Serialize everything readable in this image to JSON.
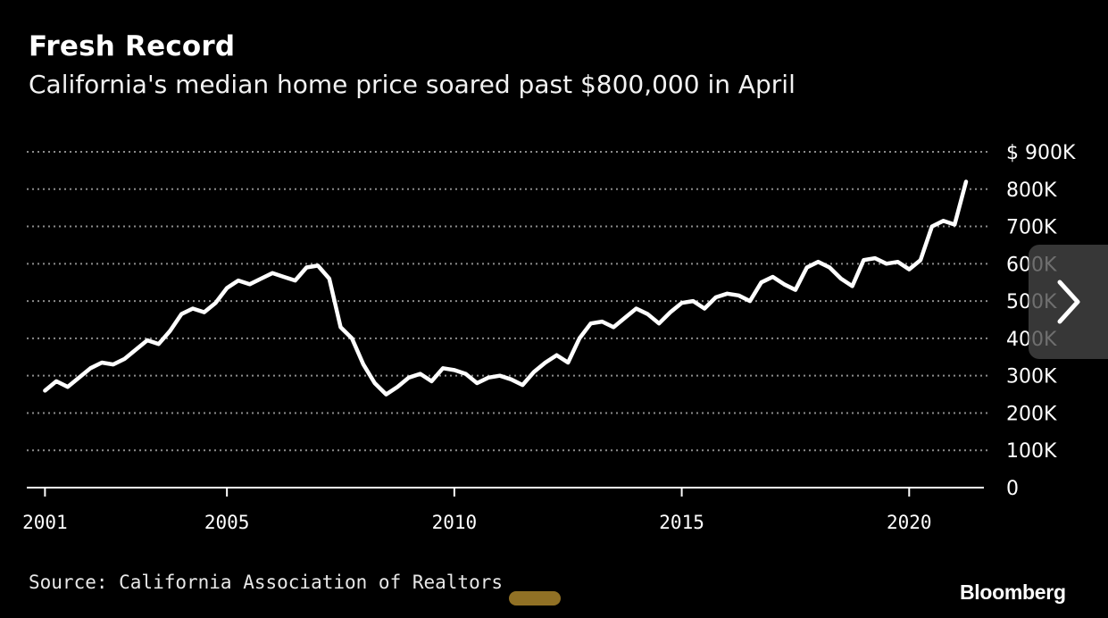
{
  "title": "Fresh Record",
  "subtitle": "California's median home price soared past $800,000 in April",
  "source": "Source: California Association of Realtors",
  "brand": "Bloomberg",
  "colors": {
    "background": "#000000",
    "line": "#ffffff",
    "grid": "#8c8c8c"
  },
  "navigation": {
    "next_icon": "chevron-right-icon"
  },
  "chart_data": {
    "type": "line",
    "xlabel": "",
    "ylabel": "",
    "xlim": [
      2000.6,
      2021.8
    ],
    "ylim": [
      0,
      900000
    ],
    "grid": true,
    "y_axis_position": "right",
    "x_ticks": [
      2001,
      2005,
      2010,
      2015,
      2020
    ],
    "x_tick_labels": [
      "2001",
      "2005",
      "2010",
      "2015",
      "2020"
    ],
    "y_ticks": [
      0,
      100000,
      200000,
      300000,
      400000,
      500000,
      600000,
      700000,
      800000,
      900000
    ],
    "y_tick_labels": [
      "0",
      "100K",
      "200K",
      "300K",
      "400K",
      "500K",
      "600K",
      "700K",
      "800K",
      "$ 900K"
    ],
    "series": [
      {
        "color": "#ffffff",
        "x": [
          2001.0,
          2001.25,
          2001.5,
          2001.75,
          2002.0,
          2002.25,
          2002.5,
          2002.75,
          2003.0,
          2003.25,
          2003.5,
          2003.75,
          2004.0,
          2004.25,
          2004.5,
          2004.75,
          2005.0,
          2005.25,
          2005.5,
          2005.75,
          2006.0,
          2006.25,
          2006.5,
          2006.75,
          2007.0,
          2007.25,
          2007.5,
          2007.75,
          2008.0,
          2008.25,
          2008.5,
          2008.75,
          2009.0,
          2009.25,
          2009.5,
          2009.75,
          2010.0,
          2010.25,
          2010.5,
          2010.75,
          2011.0,
          2011.25,
          2011.5,
          2011.75,
          2012.0,
          2012.25,
          2012.5,
          2012.75,
          2013.0,
          2013.25,
          2013.5,
          2013.75,
          2014.0,
          2014.25,
          2014.5,
          2014.75,
          2015.0,
          2015.25,
          2015.5,
          2015.75,
          2016.0,
          2016.25,
          2016.5,
          2016.75,
          2017.0,
          2017.25,
          2017.5,
          2017.75,
          2018.0,
          2018.25,
          2018.5,
          2018.75,
          2019.0,
          2019.25,
          2019.5,
          2019.75,
          2020.0,
          2020.25,
          2020.5,
          2020.75,
          2021.0,
          2021.25
        ],
        "values": [
          260000,
          285000,
          270000,
          295000,
          320000,
          335000,
          330000,
          345000,
          370000,
          395000,
          385000,
          420000,
          465000,
          480000,
          470000,
          495000,
          535000,
          555000,
          545000,
          560000,
          575000,
          565000,
          555000,
          590000,
          595000,
          560000,
          430000,
          400000,
          330000,
          280000,
          250000,
          270000,
          295000,
          305000,
          285000,
          320000,
          315000,
          305000,
          280000,
          295000,
          300000,
          290000,
          275000,
          310000,
          335000,
          355000,
          335000,
          400000,
          440000,
          445000,
          430000,
          455000,
          480000,
          465000,
          440000,
          470000,
          495000,
          500000,
          480000,
          510000,
          520000,
          515000,
          500000,
          550000,
          565000,
          545000,
          530000,
          590000,
          605000,
          590000,
          560000,
          540000,
          610000,
          615000,
          600000,
          605000,
          585000,
          610000,
          700000,
          715000,
          705000,
          820000
        ]
      }
    ]
  }
}
